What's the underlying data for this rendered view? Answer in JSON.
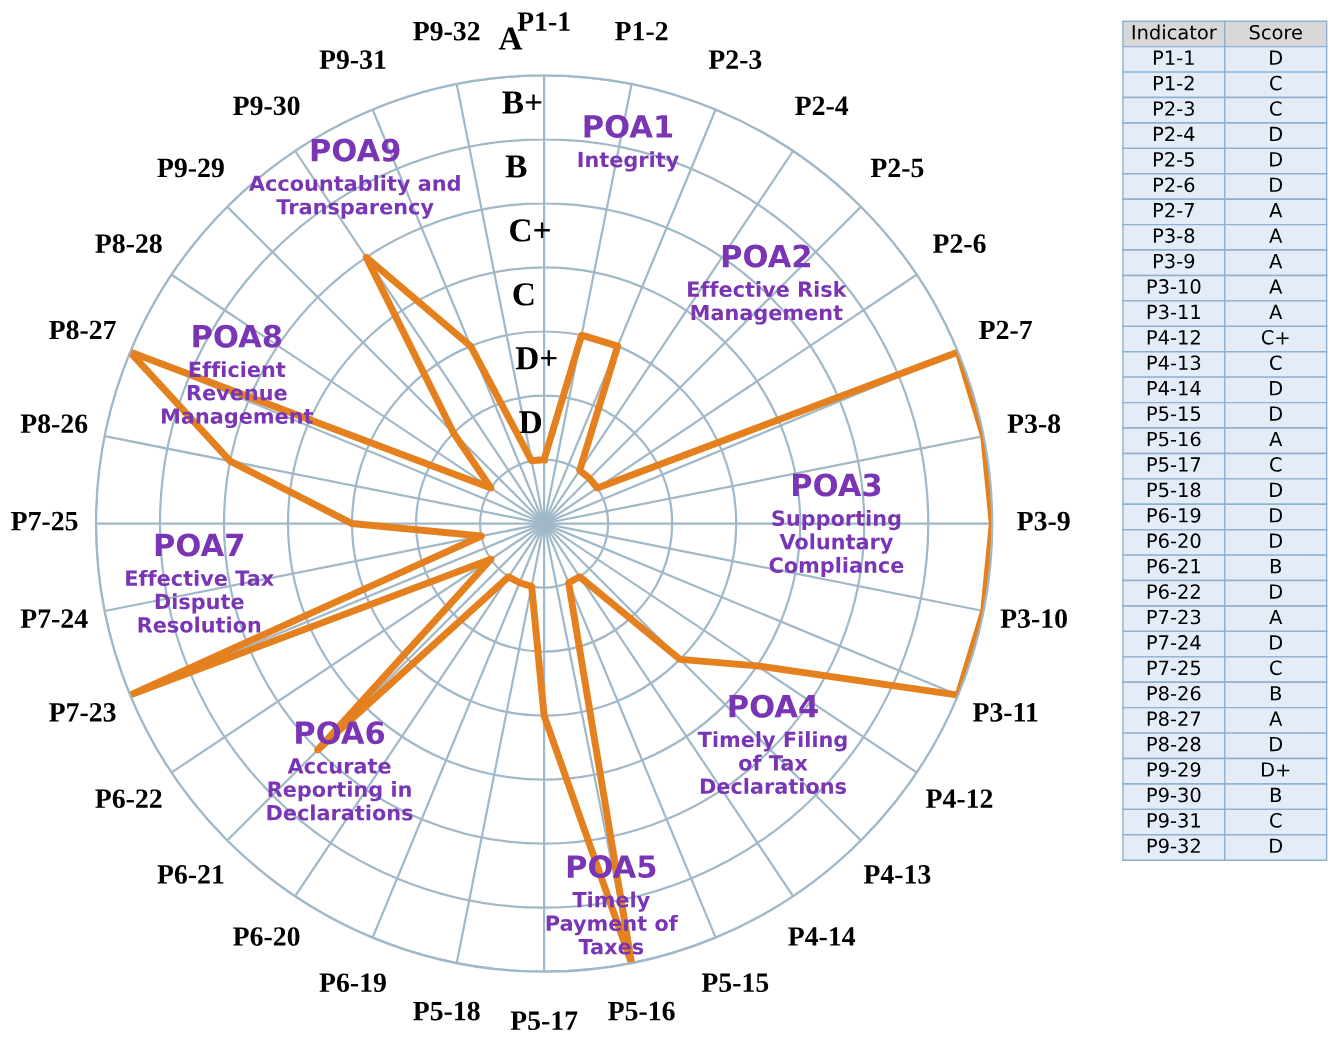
{
  "chart_data": {
    "type": "radar",
    "categories": [
      "P1-1",
      "P1-2",
      "P2-3",
      "P2-4",
      "P2-5",
      "P2-6",
      "P2-7",
      "P3-8",
      "P3-9",
      "P3-10",
      "P3-11",
      "P4-12",
      "P4-13",
      "P4-14",
      "P5-15",
      "P5-16",
      "P5-17",
      "P5-18",
      "P6-19",
      "P6-20",
      "P6-21",
      "P6-22",
      "P7-23",
      "P7-24",
      "P7-25",
      "P8-26",
      "P8-27",
      "P8-28",
      "P9-29",
      "P9-30",
      "P9-31",
      "P9-32"
    ],
    "series": [
      {
        "color": "#e5801e",
        "type": "radar",
        "values": [
          1,
          3,
          3,
          1,
          1,
          1,
          7,
          7,
          7,
          7,
          7,
          4,
          3,
          1,
          1,
          7,
          3,
          1,
          1,
          1,
          5,
          1,
          7,
          1,
          3,
          5,
          7,
          1,
          2,
          5,
          3,
          1
        ]
      }
    ],
    "value_labels": [
      "D",
      "C",
      "C",
      "D",
      "D",
      "D",
      "A",
      "A",
      "A",
      "A",
      "A",
      "C+",
      "C",
      "D",
      "D",
      "A",
      "C",
      "D",
      "D",
      "D",
      "B",
      "D",
      "A",
      "D",
      "C",
      "B",
      "A",
      "D",
      "D+",
      "B",
      "C",
      "D"
    ],
    "ylim": [
      0,
      7
    ],
    "yticks": [
      {
        "value": 1,
        "label": "D"
      },
      {
        "value": 2,
        "label": "D+"
      },
      {
        "value": 3,
        "label": "C"
      },
      {
        "value": 4,
        "label": "C+"
      },
      {
        "value": 5,
        "label": "B"
      },
      {
        "value": 6,
        "label": "B+"
      },
      {
        "value": 7,
        "label": "A"
      }
    ],
    "grid": true,
    "line_style": "solid",
    "annotations": [
      "Indicator",
      "Score",
      "POA1",
      "Integrity",
      "POA2",
      "Effective Risk\nManagement",
      "POA3",
      "Supporting\nVoluntary\nCompliance",
      "POA4",
      "Timely Filing\nof Tax\nDeclarations",
      "POA5",
      "Timely\nPayment of\nTaxes",
      "POA6",
      "Accurate\nReporting in\nDeclarations",
      "POA7",
      "Effective Tax\nDispute\nResolution",
      "POA8",
      "Efficient\nRevenue\nManagement",
      "POA9",
      "Accountablity and\nTransparency"
    ]
  }
}
